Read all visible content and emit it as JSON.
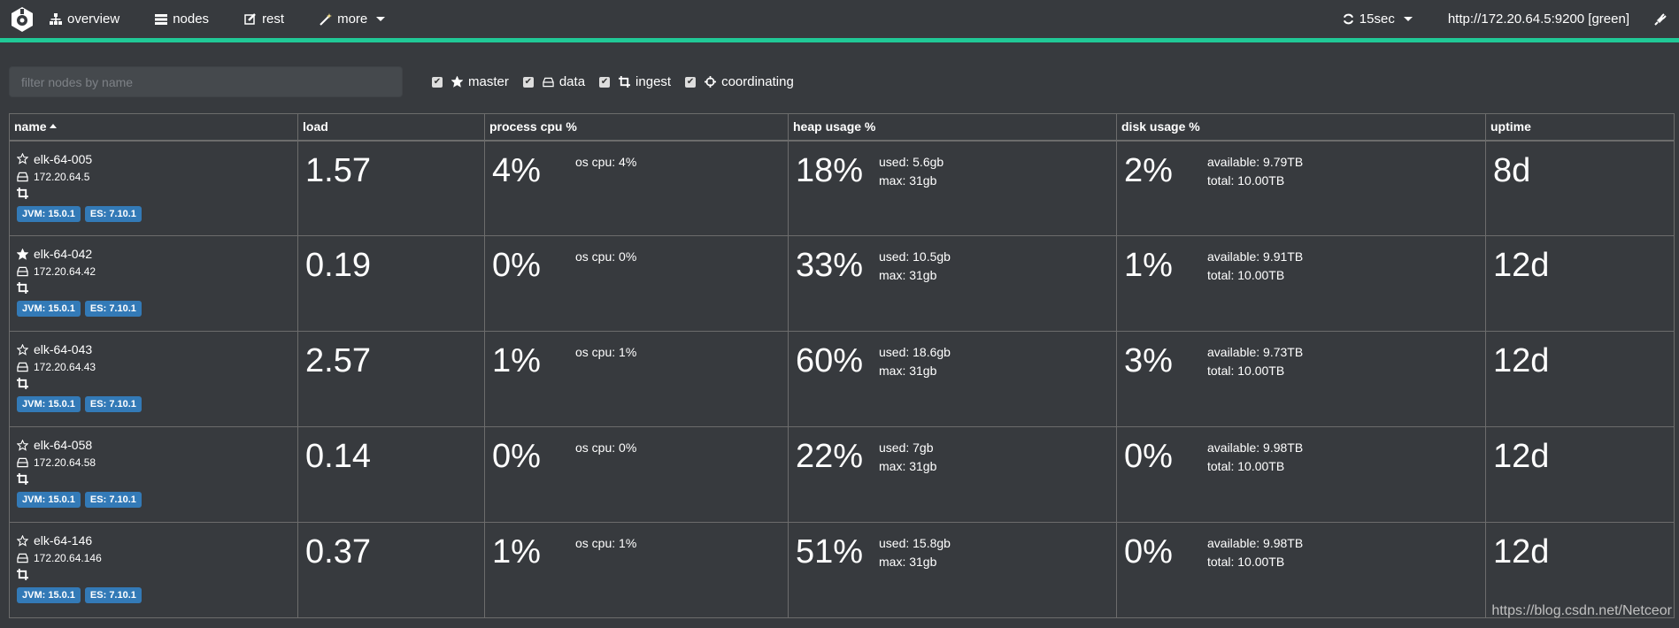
{
  "nav": {
    "items": [
      {
        "label": "overview",
        "icon": "sitemap-icon"
      },
      {
        "label": "nodes",
        "icon": "server-icon"
      },
      {
        "label": "rest",
        "icon": "edit-icon"
      },
      {
        "label": "more",
        "icon": "magic-wand-icon"
      }
    ],
    "refresh": "15sec",
    "cluster": "http://172.20.64.5:9200 [green]",
    "accent": "#20c997"
  },
  "filter": {
    "placeholder": "filter nodes by name",
    "value": ""
  },
  "roles": [
    {
      "label": "master",
      "checked": true,
      "icon": "star-icon"
    },
    {
      "label": "data",
      "checked": true,
      "icon": "hdd-icon"
    },
    {
      "label": "ingest",
      "checked": true,
      "icon": "crop-icon"
    },
    {
      "label": "coordinating",
      "checked": true,
      "icon": "crosshairs-icon"
    }
  ],
  "table": {
    "headers": [
      "name",
      "load",
      "process cpu %",
      "heap usage %",
      "disk usage %",
      "uptime"
    ],
    "sort": "name ascending",
    "rows": [
      {
        "name": "elk-64-005",
        "ip": "172.20.64.5",
        "master": false,
        "jvm": "JVM: 15.0.1",
        "es": "ES: 7.10.1",
        "load": "1.57",
        "cpu": "4%",
        "os_cpu": "os cpu: 4%",
        "heap": "18%",
        "heap_used": "used: 5.6gb",
        "heap_max": "max: 31gb",
        "disk": "2%",
        "disk_avail": "available: 9.79TB",
        "disk_total": "total: 10.00TB",
        "uptime": "8d"
      },
      {
        "name": "elk-64-042",
        "ip": "172.20.64.42",
        "master": true,
        "jvm": "JVM: 15.0.1",
        "es": "ES: 7.10.1",
        "load": "0.19",
        "cpu": "0%",
        "os_cpu": "os cpu: 0%",
        "heap": "33%",
        "heap_used": "used: 10.5gb",
        "heap_max": "max: 31gb",
        "disk": "1%",
        "disk_avail": "available: 9.91TB",
        "disk_total": "total: 10.00TB",
        "uptime": "12d"
      },
      {
        "name": "elk-64-043",
        "ip": "172.20.64.43",
        "master": false,
        "jvm": "JVM: 15.0.1",
        "es": "ES: 7.10.1",
        "load": "2.57",
        "cpu": "1%",
        "os_cpu": "os cpu: 1%",
        "heap": "60%",
        "heap_used": "used: 18.6gb",
        "heap_max": "max: 31gb",
        "disk": "3%",
        "disk_avail": "available: 9.73TB",
        "disk_total": "total: 10.00TB",
        "uptime": "12d"
      },
      {
        "name": "elk-64-058",
        "ip": "172.20.64.58",
        "master": false,
        "jvm": "JVM: 15.0.1",
        "es": "ES: 7.10.1",
        "load": "0.14",
        "cpu": "0%",
        "os_cpu": "os cpu: 0%",
        "heap": "22%",
        "heap_used": "used: 7gb",
        "heap_max": "max: 31gb",
        "disk": "0%",
        "disk_avail": "available: 9.98TB",
        "disk_total": "total: 10.00TB",
        "uptime": "12d"
      },
      {
        "name": "elk-64-146",
        "ip": "172.20.64.146",
        "master": false,
        "jvm": "JVM: 15.0.1",
        "es": "ES: 7.10.1",
        "load": "0.37",
        "cpu": "1%",
        "os_cpu": "os cpu: 1%",
        "heap": "51%",
        "heap_used": "used: 15.8gb",
        "heap_max": "max: 31gb",
        "disk": "0%",
        "disk_avail": "available: 9.98TB",
        "disk_total": "total: 10.00TB",
        "uptime": "12d"
      }
    ]
  },
  "watermark": "https://blog.csdn.net/Netceor"
}
